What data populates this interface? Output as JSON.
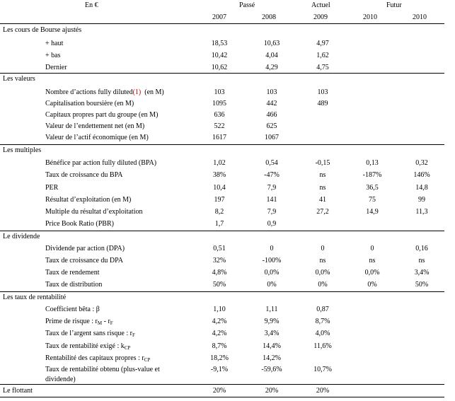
{
  "header": {
    "currency": "En €",
    "groups": {
      "past": "Passé",
      "current": "Actuel",
      "future": "Futur"
    },
    "years": [
      "2007",
      "2008",
      "2009",
      "2010",
      "2010"
    ]
  },
  "sections": [
    {
      "title": "Les cours de Bourse ajustés",
      "rows": [
        {
          "label": "+ haut",
          "values": [
            "18,53",
            "10,63",
            "4,97",
            "",
            ""
          ]
        },
        {
          "label": "+ bas",
          "values": [
            "10,42",
            "4,04",
            "1,62",
            "",
            ""
          ]
        },
        {
          "label": "Dernier",
          "values": [
            "10,62",
            "4,29",
            "4,75",
            "",
            ""
          ]
        }
      ]
    },
    {
      "title": "Les valeurs",
      "rows": [
        {
          "label": "Nombre d’actions fully diluted",
          "label_note": "(1)",
          "label_suffix": "  (en M)",
          "values": [
            "103",
            "103",
            "103",
            "",
            ""
          ]
        },
        {
          "label": "Capitalisation boursière (en M)",
          "values": [
            "1095",
            "442",
            "489",
            "",
            ""
          ]
        },
        {
          "label": "Capitaux propres part du groupe (en M)",
          "values": [
            "636",
            "466",
            "",
            "",
            ""
          ]
        },
        {
          "label": "Valeur de l’endettement net (en M)",
          "values": [
            "522",
            "625",
            "",
            "",
            ""
          ]
        },
        {
          "label": "Valeur de l’actif économique (en M)",
          "values": [
            "1617",
            "1067",
            "",
            "",
            ""
          ]
        }
      ]
    },
    {
      "title": "Les multiples",
      "rows": [
        {
          "label": "Bénéfice par action fully diluted (BPA)",
          "values": [
            "1,02",
            "0,54",
            "-0,15",
            "0,13",
            "0,32"
          ]
        },
        {
          "label": "Taux de croissance du BPA",
          "values": [
            "38%",
            "-47%",
            "ns",
            "-187%",
            "146%"
          ]
        },
        {
          "label": "PER",
          "values": [
            "10,4",
            "7,9",
            "ns",
            "36,5",
            "14,8"
          ]
        },
        {
          "label": "Résultat d’exploitation (en M)",
          "values": [
            "197",
            "141",
            "41",
            "75",
            "99"
          ]
        },
        {
          "label": "Multiple du résultat d’exploitation",
          "values": [
            "8,2",
            "7,9",
            "27,2",
            "14,9",
            "11,3"
          ]
        },
        {
          "label": "Price Book Ratio (PBR)",
          "values": [
            "1,7",
            "0,9",
            "",
            "",
            ""
          ]
        }
      ]
    },
    {
      "title": "Le dividende",
      "rows": [
        {
          "label": "Dividende par action (DPA)",
          "values": [
            "0,51",
            "0",
            "0",
            "0",
            "0,16"
          ]
        },
        {
          "label": "Taux de croissance du DPA",
          "values": [
            "32%",
            "-100%",
            "ns",
            "ns",
            "ns"
          ]
        },
        {
          "label": "Taux de rendement",
          "values": [
            "4,8%",
            "0,0%",
            "0,0%",
            "0,0%",
            "3,4%"
          ]
        },
        {
          "label": "Taux de distribution",
          "values": [
            "50%",
            "0%",
            "0%",
            "0%",
            "50%"
          ]
        }
      ]
    },
    {
      "title": "Les taux de rentabilité",
      "rows": [
        {
          "label": "Coefficient bêta : β",
          "values": [
            "1,10",
            "1,11",
            "0,87",
            "",
            ""
          ]
        },
        {
          "label": "Prime de risque : r",
          "sub1": "M",
          "mid": " - r",
          "sub2": "F",
          "values": [
            "4,2%",
            "9,9%",
            "8,7%",
            "",
            ""
          ]
        },
        {
          "label": "Taux de l’argent sans risque : r",
          "sub1": "F",
          "values": [
            "4,2%",
            "3,4%",
            "4,0%",
            "",
            ""
          ]
        },
        {
          "label": "Taux de rentabilité exigé : k",
          "sub1": "CP",
          "values": [
            "8,7%",
            "14,4%",
            "11,6%",
            "",
            ""
          ]
        },
        {
          "label": "Rentabilité des capitaux propres : r",
          "sub1": "CP",
          "values": [
            "18,2%",
            "14,2%",
            "",
            "",
            ""
          ]
        },
        {
          "label": "Taux de rentabilité obtenu (plus-value et",
          "label2": "dividende)",
          "values": [
            "-9,1%",
            "-59,6%",
            "10,7%",
            "",
            ""
          ]
        }
      ]
    },
    {
      "title": "Le flottant",
      "rows": [
        {
          "label": "",
          "values": [
            "20%",
            "20%",
            "20%",
            "",
            ""
          ]
        }
      ]
    }
  ]
}
